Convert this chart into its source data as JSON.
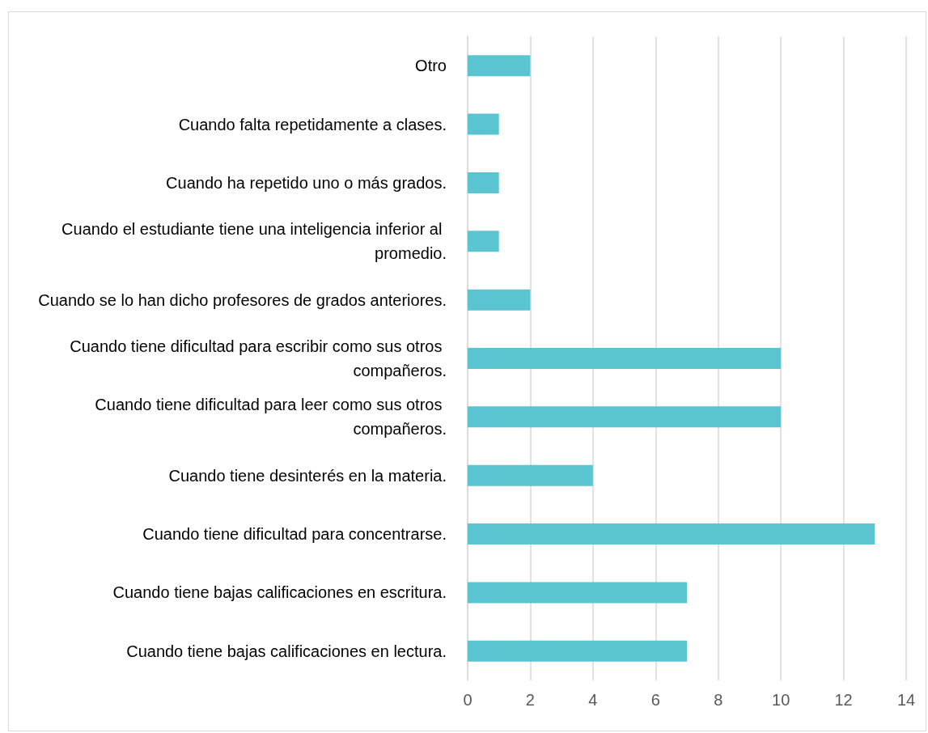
{
  "chart_data": {
    "type": "bar",
    "orientation": "horizontal",
    "categories": [
      "Otro",
      "Cuando falta repetidamente a clases.",
      "Cuando ha repetido uno o más grados.",
      "Cuando el estudiante tiene una inteligencia inferior al promedio.",
      "Cuando se lo han dicho profesores de grados anteriores.",
      "Cuando tiene dificultad para escribir como sus otros compañeros.",
      "Cuando tiene dificultad para leer como sus otros compañeros.",
      "Cuando tiene desinterés en la materia.",
      "Cuando tiene dificultad para concentrarse.",
      "Cuando tiene bajas calificaciones en escritura.",
      "Cuando tiene bajas calificaciones en lectura."
    ],
    "values": [
      2,
      1,
      1,
      1,
      2,
      10,
      10,
      4,
      13,
      7,
      7
    ],
    "color": "#5bc4d1",
    "xlim": [
      0,
      14
    ],
    "xticks": [
      0,
      2,
      4,
      6,
      8,
      10,
      12,
      14
    ],
    "grid": "x"
  }
}
